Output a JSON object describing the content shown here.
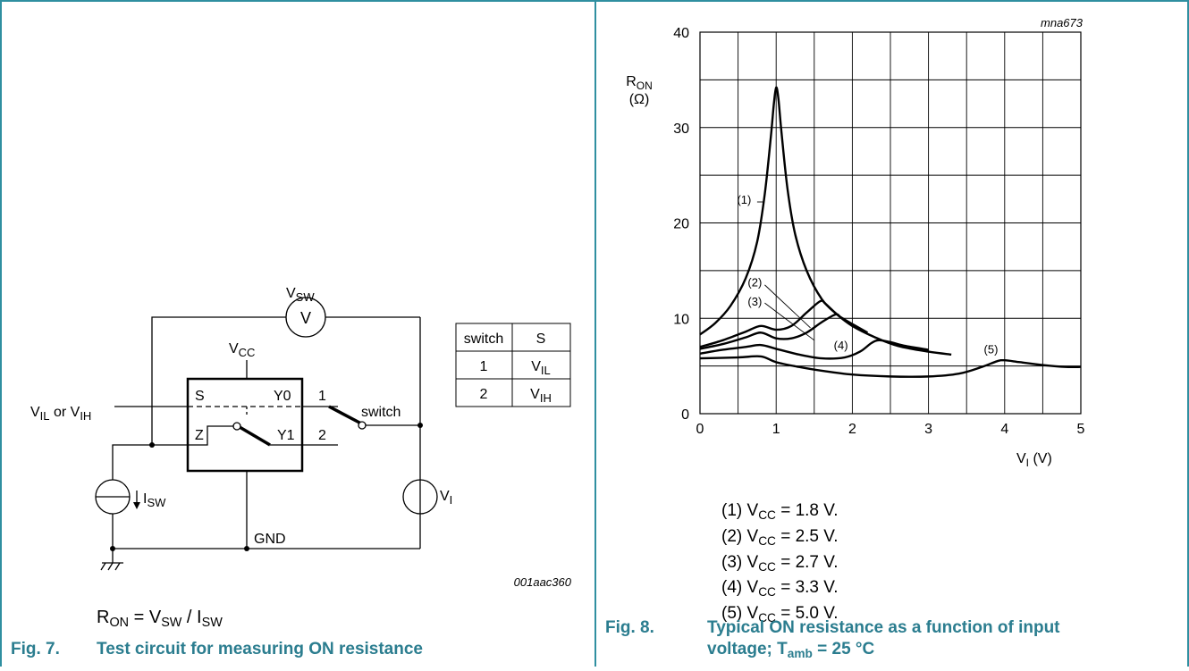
{
  "fig7": {
    "vsw_label": "V",
    "vsw_sub": "SW",
    "voltmeter_symbol": "V",
    "vcc_label": "V",
    "vcc_sub": "CC",
    "s_pin": "S",
    "y0_pin": "Y0",
    "z_pin": "Z",
    "y1_pin": "Y1",
    "pos1": "1",
    "pos2": "2",
    "switch_label": "switch",
    "vil_label": "V",
    "vil_sub": "IL",
    "or_text": " or V",
    "vih_sub": "IH",
    "isw_label": "I",
    "isw_sub": "SW",
    "vi_label": "V",
    "vi_sub": "I",
    "gnd_label": "GND",
    "code": "001aac360",
    "table": {
      "header": [
        "switch",
        "S"
      ],
      "rows": [
        {
          "switch": "1",
          "s": "V",
          "s_sub": "IL"
        },
        {
          "switch": "2",
          "s": "V",
          "s_sub": "IH"
        }
      ]
    },
    "formula": {
      "r": "R",
      "r_sub": "ON",
      "eq": " = V",
      "v_sub": "SW",
      "div": " / I",
      "i_sub": "SW"
    },
    "caption_num": "Fig. 7.",
    "caption_text": "Test circuit for measuring ON resistance"
  },
  "fig8": {
    "code": "mna673",
    "caption_num": "Fig. 8.",
    "caption_line1": "Typical ON resistance as a function of input",
    "caption_line2a": "voltage; T",
    "caption_line2_sub": "amb",
    "caption_line2b": " = 25 °C",
    "legend": [
      {
        "num": "(1) V",
        "sub": "CC",
        "rest": " = 1.8 V."
      },
      {
        "num": "(2) V",
        "sub": "CC",
        "rest": " = 2.5 V."
      },
      {
        "num": "(3) V",
        "sub": "CC",
        "rest": " = 2.7 V."
      },
      {
        "num": "(4) V",
        "sub": "CC",
        "rest": " = 3.3 V."
      },
      {
        "num": "(5) V",
        "sub": "CC",
        "rest": " = 5.0 V."
      }
    ]
  },
  "chart_data": {
    "type": "line",
    "title": "",
    "xlabel": "V",
    "xlabel_sub": "I",
    "xlabel_unit": " (V)",
    "ylabel": "R",
    "ylabel_sub": "ON",
    "ylabel_unit": "(Ω)",
    "xlim": [
      0,
      5
    ],
    "ylim": [
      0,
      40
    ],
    "x_ticks": [
      "0",
      "1",
      "2",
      "3",
      "4",
      "5"
    ],
    "y_ticks": [
      "0",
      "10",
      "20",
      "30",
      "40"
    ],
    "grid": true,
    "series": [
      {
        "name": "(1)",
        "label_at": [
          0.58,
          22.5
        ],
        "x": [
          0,
          0.2,
          0.4,
          0.6,
          0.75,
          0.85,
          0.93,
          0.97,
          1.0,
          1.03,
          1.07,
          1.15,
          1.25,
          1.4,
          1.6,
          1.8,
          2.0,
          2.3,
          2.6,
          3.0,
          3.3
        ],
        "values": [
          8.3,
          9.5,
          11.3,
          14.2,
          18,
          23,
          29,
          32.5,
          34.2,
          33,
          29.5,
          23.5,
          18.8,
          15,
          12,
          10.4,
          9.2,
          8.0,
          7.1,
          6.5,
          6.2
        ]
      },
      {
        "name": "(2)",
        "label_at": [
          0.72,
          13.8
        ],
        "x": [
          0,
          0.3,
          0.6,
          0.8,
          1.0,
          1.2,
          1.4,
          1.58,
          1.65,
          1.8,
          2.0
        ],
        "values": [
          7.0,
          7.7,
          8.6,
          9.2,
          8.8,
          9.2,
          10.6,
          11.8,
          11.5,
          10.4,
          9.2
        ]
      },
      {
        "name": "(3)",
        "label_at": [
          0.72,
          11.8
        ],
        "x": [
          0,
          0.3,
          0.6,
          0.8,
          1.0,
          1.2,
          1.4,
          1.6,
          1.78,
          1.85,
          2.0,
          2.2
        ],
        "values": [
          6.8,
          7.3,
          8.0,
          8.5,
          7.9,
          7.9,
          8.5,
          9.6,
          10.4,
          10.1,
          9.4,
          8.5
        ]
      },
      {
        "name": "(4)",
        "label_at": [
          1.85,
          7.2
        ],
        "x": [
          0,
          0.3,
          0.6,
          0.8,
          1.0,
          1.3,
          1.6,
          1.9,
          2.1,
          2.25,
          2.35,
          2.5,
          2.7,
          3.0
        ],
        "values": [
          6.3,
          6.7,
          7.0,
          7.2,
          6.8,
          6.2,
          5.8,
          5.9,
          6.5,
          7.4,
          7.7,
          7.5,
          7.1,
          6.7
        ]
      },
      {
        "name": "(5)",
        "label_at": [
          3.82,
          6.8
        ],
        "x": [
          0,
          0.5,
          0.8,
          1.0,
          1.3,
          1.6,
          2.0,
          2.5,
          3.0,
          3.4,
          3.7,
          3.9,
          4.0,
          4.2,
          4.5,
          4.8,
          5.0
        ],
        "values": [
          5.8,
          5.9,
          6.0,
          5.4,
          4.9,
          4.5,
          4.1,
          3.9,
          3.9,
          4.2,
          4.9,
          5.5,
          5.6,
          5.4,
          5.1,
          4.9,
          4.9
        ]
      }
    ],
    "annotations": [
      {
        "text": "(1)"
      },
      {
        "text": "(2)"
      },
      {
        "text": "(3)"
      },
      {
        "text": "(4)"
      },
      {
        "text": "(5)"
      }
    ]
  }
}
